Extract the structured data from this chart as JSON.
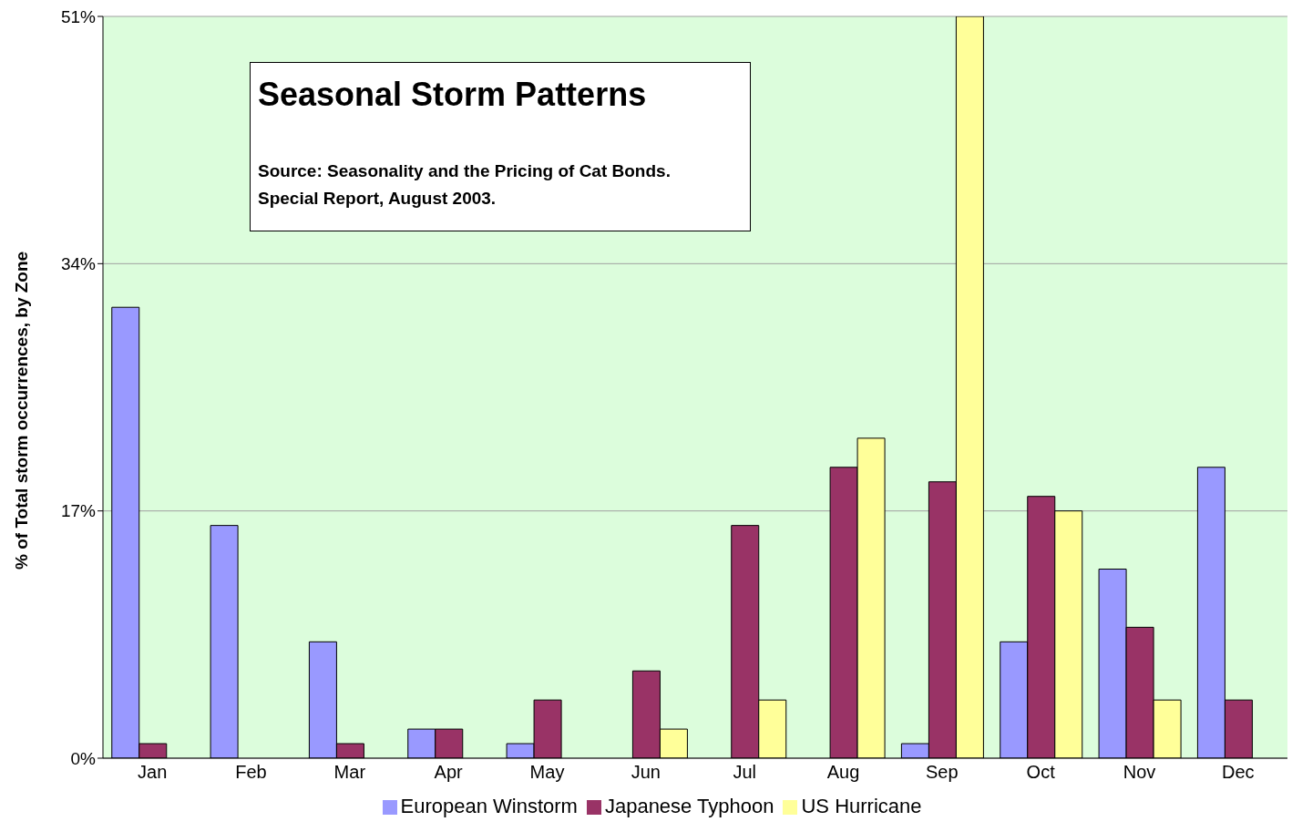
{
  "chart_data": {
    "type": "bar",
    "title": "Seasonal Storm Patterns",
    "annotations": [
      "Source: Seasonality and the Pricing of Cat Bonds.",
      "Special Report, August 2003."
    ],
    "ylabel": "% of Total storm occurrences, by Zone",
    "categories": [
      "Jan",
      "Feb",
      "Mar",
      "Apr",
      "May",
      "Jun",
      "Jul",
      "Aug",
      "Sep",
      "Oct",
      "Nov",
      "Dec"
    ],
    "series": [
      {
        "name": "European Winstorm",
        "color": "#9999ff",
        "values": [
          31,
          16,
          8,
          2,
          1,
          0,
          0,
          0,
          1,
          8,
          13,
          20
        ]
      },
      {
        "name": "Japanese Typhoon",
        "color": "#993366",
        "values": [
          1,
          0,
          1,
          2,
          4,
          6,
          16,
          20,
          19,
          18,
          9,
          4
        ]
      },
      {
        "name": "US Hurricane",
        "color": "#ffff99",
        "values": [
          0,
          0,
          0,
          0,
          0,
          2,
          4,
          22,
          51,
          17,
          4,
          0
        ]
      }
    ],
    "ylim": [
      0,
      51
    ],
    "yticks": [
      {
        "value": 0,
        "label": "0%"
      },
      {
        "value": 17,
        "label": "17%"
      },
      {
        "value": 34,
        "label": "34%"
      },
      {
        "value": 51,
        "label": "51%"
      }
    ],
    "grid": "y",
    "legend": "bottom"
  }
}
